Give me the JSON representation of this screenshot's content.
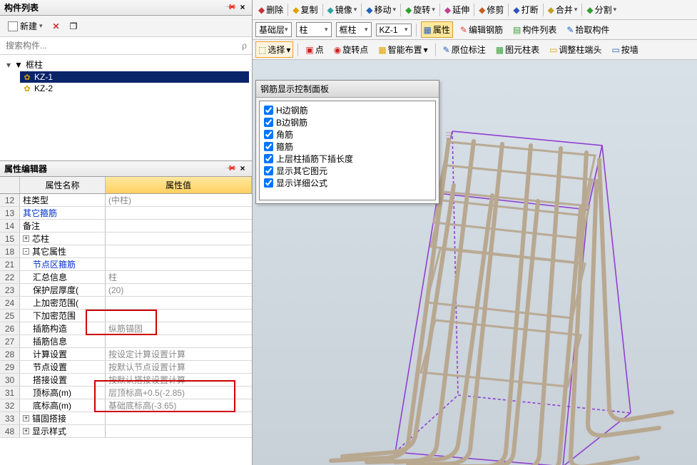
{
  "leftPanel": {
    "title": "构件列表",
    "newBtn": "新建",
    "searchPlaceholder": "搜索构件...",
    "tree": {
      "root": "框柱",
      "items": [
        "KZ-1",
        "KZ-2"
      ]
    }
  },
  "propEditor": {
    "title": "属性编辑器",
    "colName": "属性名称",
    "colVal": "属性值",
    "rows": [
      {
        "n": "12",
        "name": "柱类型",
        "val": "(中柱)",
        "blue": false
      },
      {
        "n": "13",
        "name": "其它箍筋",
        "val": "",
        "blue": true
      },
      {
        "n": "14",
        "name": "备注",
        "val": "",
        "blue": false
      },
      {
        "n": "15",
        "name": "芯柱",
        "val": "",
        "blue": false,
        "exp": "+"
      },
      {
        "n": "18",
        "name": "其它属性",
        "val": "",
        "blue": false,
        "exp": "-"
      },
      {
        "n": "21",
        "name": "节点区箍筋",
        "val": "",
        "blue": true,
        "indent": true
      },
      {
        "n": "22",
        "name": "汇总信息",
        "val": "柱",
        "blue": false,
        "indent": true
      },
      {
        "n": "23",
        "name": "保护层厚度(",
        "val": "(20)",
        "blue": false,
        "indent": true
      },
      {
        "n": "24",
        "name": "上加密范围(",
        "val": "",
        "blue": false,
        "indent": true
      },
      {
        "n": "25",
        "name": "下加密范围",
        "val": "",
        "blue": false,
        "indent": true
      },
      {
        "n": "26",
        "name": "插筋构造",
        "val": "纵筋锚固",
        "blue": false,
        "indent": true,
        "hl": 1
      },
      {
        "n": "27",
        "name": "插筋信息",
        "val": "",
        "blue": false,
        "indent": true
      },
      {
        "n": "28",
        "name": "计算设置",
        "val": "按设定计算设置计算",
        "blue": false,
        "indent": true
      },
      {
        "n": "29",
        "name": "节点设置",
        "val": "按默认节点设置计算",
        "blue": false,
        "indent": true
      },
      {
        "n": "30",
        "name": "搭接设置",
        "val": "按默认搭接设置计算",
        "blue": false,
        "indent": true
      },
      {
        "n": "31",
        "name": "顶标高(m)",
        "val": "层顶标高+0.5(-2.85)",
        "blue": false,
        "indent": true,
        "hl": 2
      },
      {
        "n": "32",
        "name": "底标高(m)",
        "val": "基础底标高(-3.65)",
        "blue": false,
        "indent": true,
        "hl": 2
      },
      {
        "n": "33",
        "name": "锚固搭接",
        "val": "",
        "blue": false,
        "exp": "+"
      },
      {
        "n": "48",
        "name": "显示样式",
        "val": "",
        "blue": false,
        "exp": "+"
      }
    ]
  },
  "topToolbar1": {
    "items": [
      "删除",
      "复制",
      "镜像",
      "移动",
      "旋转",
      "延伸",
      "修剪",
      "打断",
      "合并",
      "分割"
    ]
  },
  "topToolbar2": {
    "sel1": "基础层",
    "sel2": "柱",
    "sel3": "框柱",
    "sel4": "KZ-1",
    "attr": "属性",
    "editRebar": "编辑钢筋",
    "compList": "构件列表",
    "pick": "拾取构件"
  },
  "topToolbar3": {
    "select": "选择",
    "items": [
      "点",
      "旋转点",
      "智能布置"
    ],
    "items2": [
      "原位标注",
      "图元柱表",
      "调整柱端头",
      "按墙"
    ]
  },
  "rebarPanel": {
    "title": "钢筋显示控制面板",
    "checks": [
      "H边钢筋",
      "B边钢筋",
      "角筋",
      "箍筋",
      "上层柱插筋下插长度",
      "显示其它图元",
      "显示详细公式"
    ]
  },
  "colors": {
    "selected_bg": "#0a246a",
    "highlight_border": "#cc0000",
    "header_val_bg1": "#ffe8a0",
    "header_val_bg2": "#ffd060",
    "viewport_bg": "#d0d8e0",
    "rebar_color": "#b8a890",
    "box_outline": "#9040d0"
  }
}
